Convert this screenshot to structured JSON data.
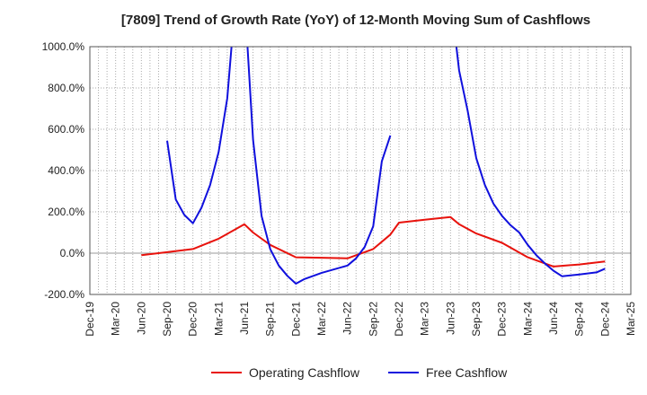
{
  "chart_data": {
    "type": "line",
    "title": "[7809]  Trend of Growth Rate (YoY) of 12-Month Moving Sum of Cashflows",
    "xlabel": "",
    "ylabel": "",
    "ylim": [
      -200,
      1000
    ],
    "yticks": [
      -200,
      0,
      200,
      400,
      600,
      800,
      1000
    ],
    "ytick_labels": [
      "-200.0%",
      "0.0%",
      "200.0%",
      "400.0%",
      "600.0%",
      "800.0%",
      "1000.0%"
    ],
    "x_ticks": [
      "Dec-19",
      "Mar-20",
      "Jun-20",
      "Sep-20",
      "Dec-20",
      "Mar-21",
      "Jun-21",
      "Sep-21",
      "Dec-21",
      "Mar-22",
      "Jun-22",
      "Sep-22",
      "Dec-22",
      "Mar-23",
      "Jun-23",
      "Sep-23",
      "Dec-23",
      "Mar-24",
      "Jun-24",
      "Sep-24",
      "Dec-24",
      "Mar-25"
    ],
    "grid": true,
    "legend_position": "bottom",
    "series": [
      {
        "name": "Operating Cashflow",
        "color": "#e8120c",
        "points": [
          [
            "Jun-20",
            -10
          ],
          [
            "Sep-20",
            5
          ],
          [
            "Dec-20",
            20
          ],
          [
            "Mar-21",
            70
          ],
          [
            "Jun-21",
            140
          ],
          [
            "Jul-21",
            100
          ],
          [
            "Sep-21",
            40
          ],
          [
            "Dec-21",
            -20
          ],
          [
            "Mar-22",
            -22
          ],
          [
            "Jun-22",
            -25
          ],
          [
            "Sep-22",
            20
          ],
          [
            "Nov-22",
            90
          ],
          [
            "Dec-22",
            148
          ],
          [
            "Mar-23",
            162
          ],
          [
            "Jun-23",
            175
          ],
          [
            "Jul-23",
            140
          ],
          [
            "Sep-23",
            95
          ],
          [
            "Dec-23",
            50
          ],
          [
            "Mar-24",
            -20
          ],
          [
            "Jun-24",
            -65
          ],
          [
            "Sep-24",
            -55
          ],
          [
            "Dec-24",
            -40
          ]
        ]
      },
      {
        "name": "Free Cashflow",
        "color": "#1010dd",
        "segments": [
          [
            [
              "Sep-20",
              545
            ],
            [
              "Oct-20",
              260
            ],
            [
              "Nov-20",
              185
            ],
            [
              "Dec-20",
              145
            ],
            [
              "Jan-21",
              220
            ],
            [
              "Feb-21",
              330
            ],
            [
              "Mar-21",
              490
            ],
            [
              "Apr-21",
              750
            ],
            [
              "May-21",
              1250
            ]
          ],
          [
            [
              "Jun-21",
              1250
            ],
            [
              "Jul-21",
              550
            ],
            [
              "Aug-21",
              180
            ],
            [
              "Sep-21",
              20
            ],
            [
              "Oct-21",
              -60
            ],
            [
              "Nov-21",
              -110
            ],
            [
              "Dec-21",
              -148
            ],
            [
              "Jan-22",
              -125
            ],
            [
              "Mar-22",
              -95
            ],
            [
              "Jun-22",
              -60
            ],
            [
              "Jul-22",
              -25
            ],
            [
              "Aug-22",
              30
            ],
            [
              "Sep-22",
              130
            ],
            [
              "Oct-22",
              445
            ],
            [
              "Nov-22",
              570
            ]
          ],
          [
            [
              "Jun-23",
              1250
            ],
            [
              "Jul-23",
              885
            ],
            [
              "Aug-23",
              690
            ],
            [
              "Sep-23",
              460
            ],
            [
              "Oct-23",
              330
            ],
            [
              "Nov-23",
              240
            ],
            [
              "Dec-23",
              180
            ],
            [
              "Jan-24",
              135
            ],
            [
              "Feb-24",
              100
            ],
            [
              "Mar-24",
              40
            ],
            [
              "Apr-24",
              -10
            ],
            [
              "May-24",
              -50
            ],
            [
              "Jun-24",
              -85
            ],
            [
              "Jul-24",
              -112
            ],
            [
              "Sep-24",
              -103
            ],
            [
              "Nov-24",
              -93
            ],
            [
              "Dec-24",
              -75
            ]
          ]
        ]
      }
    ]
  }
}
